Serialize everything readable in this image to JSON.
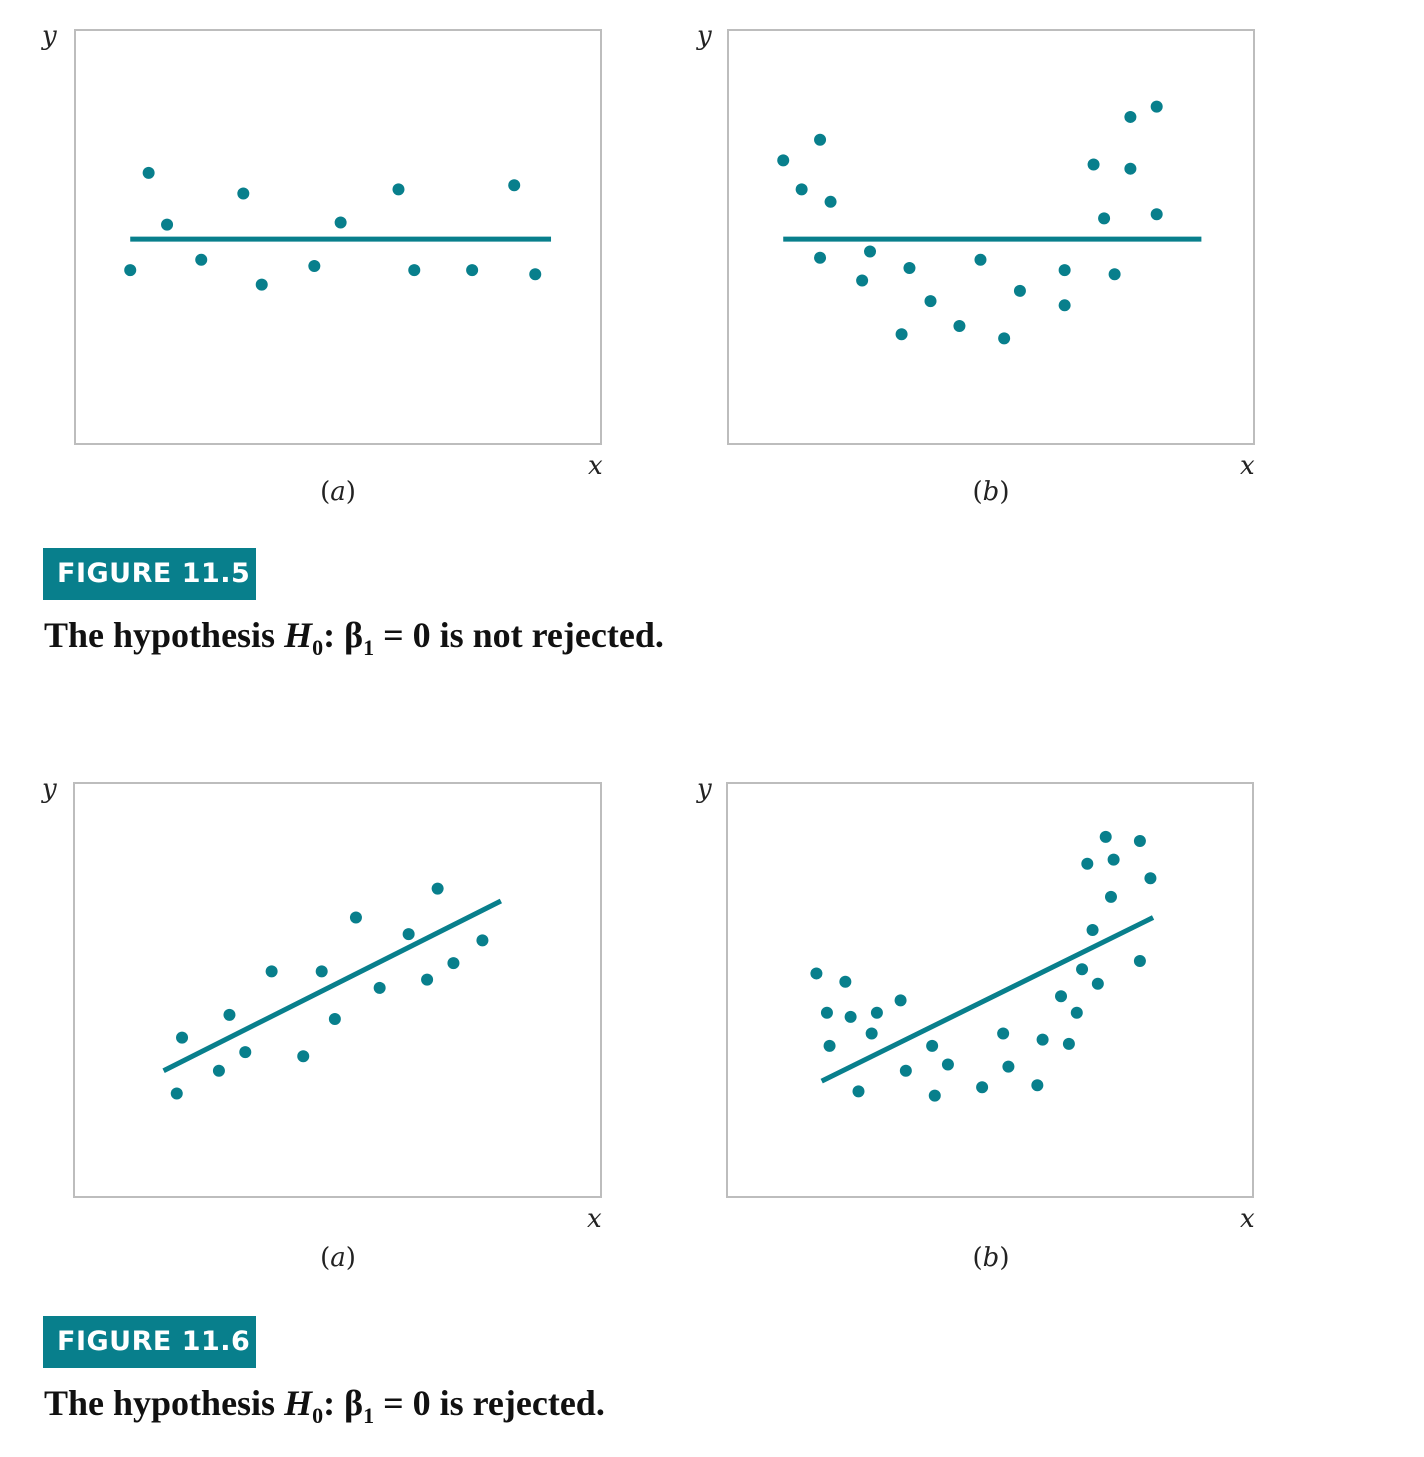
{
  "colors": {
    "accent": "#087f8c",
    "frame": "#bdbdbd"
  },
  "figure_11_5": {
    "badge": "FIGURE 11.5",
    "caption": {
      "before": "The hypothesis ",
      "H": "H",
      "H_sub": "0",
      "colon": ": ",
      "beta": "β",
      "beta_sub": "1",
      "after": " = 0 is not rejected."
    }
  },
  "figure_11_6": {
    "badge": "FIGURE 11.6",
    "caption": {
      "before": "The hypothesis ",
      "H": "H",
      "H_sub": "0",
      "colon": ": ",
      "beta": "β",
      "beta_sub": "1",
      "after": " = 0 is rejected."
    }
  },
  "chart_data": [
    {
      "id": "fig11_5a",
      "type": "scatter",
      "panel_label": "a",
      "xlabel": "x",
      "ylabel": "y",
      "xlim": [
        0,
        100
      ],
      "ylim": [
        0,
        100
      ],
      "line": {
        "x1": 10.5,
        "y1": 49.5,
        "x2": 90.5,
        "y2": 49.5
      },
      "points": [
        [
          10.5,
          42
        ],
        [
          14,
          65.5
        ],
        [
          17.5,
          53
        ],
        [
          24,
          44.5
        ],
        [
          32,
          60.5
        ],
        [
          35.5,
          38.5
        ],
        [
          45.5,
          43
        ],
        [
          50.5,
          53.5
        ],
        [
          61.5,
          61.5
        ],
        [
          64.5,
          42
        ],
        [
          75.5,
          42
        ],
        [
          83.5,
          62.5
        ],
        [
          87.5,
          41
        ]
      ]
    },
    {
      "id": "fig11_5b",
      "type": "scatter",
      "panel_label": "b",
      "xlabel": "x",
      "ylabel": "y",
      "xlim": [
        0,
        100
      ],
      "ylim": [
        0,
        100
      ],
      "line": {
        "x1": 10.5,
        "y1": 49.5,
        "x2": 90,
        "y2": 49.5
      },
      "points": [
        [
          10.5,
          68.5
        ],
        [
          14,
          61.5
        ],
        [
          17.5,
          73.5
        ],
        [
          17.5,
          45
        ],
        [
          19.5,
          58.5
        ],
        [
          25.5,
          39.5
        ],
        [
          27,
          46.5
        ],
        [
          33,
          26.5
        ],
        [
          34.5,
          42.5
        ],
        [
          38.5,
          34.5
        ],
        [
          44,
          28.5
        ],
        [
          48,
          44.5
        ],
        [
          52.5,
          25.5
        ],
        [
          55.5,
          37
        ],
        [
          64,
          42
        ],
        [
          64,
          33.5
        ],
        [
          69.5,
          67.5
        ],
        [
          73.5,
          41
        ],
        [
          71.5,
          54.5
        ],
        [
          76.5,
          79
        ],
        [
          76.5,
          66.5
        ],
        [
          81.5,
          55.5
        ],
        [
          81.5,
          81.5
        ]
      ]
    },
    {
      "id": "fig11_6a",
      "type": "scatter",
      "panel_label": "a",
      "xlabel": "x",
      "ylabel": "y",
      "xlim": [
        0,
        100
      ],
      "ylim": [
        0,
        100
      ],
      "line": {
        "x1": 17,
        "y1": 30.5,
        "x2": 81,
        "y2": 71.5
      },
      "points": [
        [
          19.5,
          25
        ],
        [
          20.5,
          38.5
        ],
        [
          27.5,
          30.5
        ],
        [
          29.5,
          44
        ],
        [
          32.5,
          35
        ],
        [
          37.5,
          54.5
        ],
        [
          43.5,
          34
        ],
        [
          47,
          54.5
        ],
        [
          49.5,
          43
        ],
        [
          53.5,
          67.5
        ],
        [
          58,
          50.5
        ],
        [
          63.5,
          63.5
        ],
        [
          67,
          52.5
        ],
        [
          69,
          74.5
        ],
        [
          72,
          56.5
        ],
        [
          77.5,
          62
        ]
      ]
    },
    {
      "id": "fig11_6b",
      "type": "scatter",
      "panel_label": "b",
      "xlabel": "x",
      "ylabel": "y",
      "xlim": [
        0,
        100
      ],
      "ylim": [
        0,
        100
      ],
      "line": {
        "x1": 18,
        "y1": 28,
        "x2": 81,
        "y2": 67.5
      },
      "points": [
        [
          17,
          54
        ],
        [
          19,
          44.5
        ],
        [
          19.5,
          36.5
        ],
        [
          22.5,
          52
        ],
        [
          25,
          25.5
        ],
        [
          23.5,
          43.5
        ],
        [
          27.5,
          39.5
        ],
        [
          28.5,
          44.5
        ],
        [
          33,
          47.5
        ],
        [
          34,
          30.5
        ],
        [
          39,
          36.5
        ],
        [
          39.5,
          24.5
        ],
        [
          42,
          32
        ],
        [
          48.5,
          26.5
        ],
        [
          52.5,
          39.5
        ],
        [
          53.5,
          31.5
        ],
        [
          59,
          27
        ],
        [
          60,
          38
        ],
        [
          63.5,
          48.5
        ],
        [
          65,
          37
        ],
        [
          66.5,
          44.5
        ],
        [
          67.5,
          55
        ],
        [
          68.5,
          80.5
        ],
        [
          69.5,
          64.5
        ],
        [
          70.5,
          51.5
        ],
        [
          72,
          87
        ],
        [
          73,
          72.5
        ],
        [
          73.5,
          81.5
        ],
        [
          78.5,
          86
        ],
        [
          78.5,
          57
        ],
        [
          80.5,
          77
        ]
      ]
    }
  ]
}
